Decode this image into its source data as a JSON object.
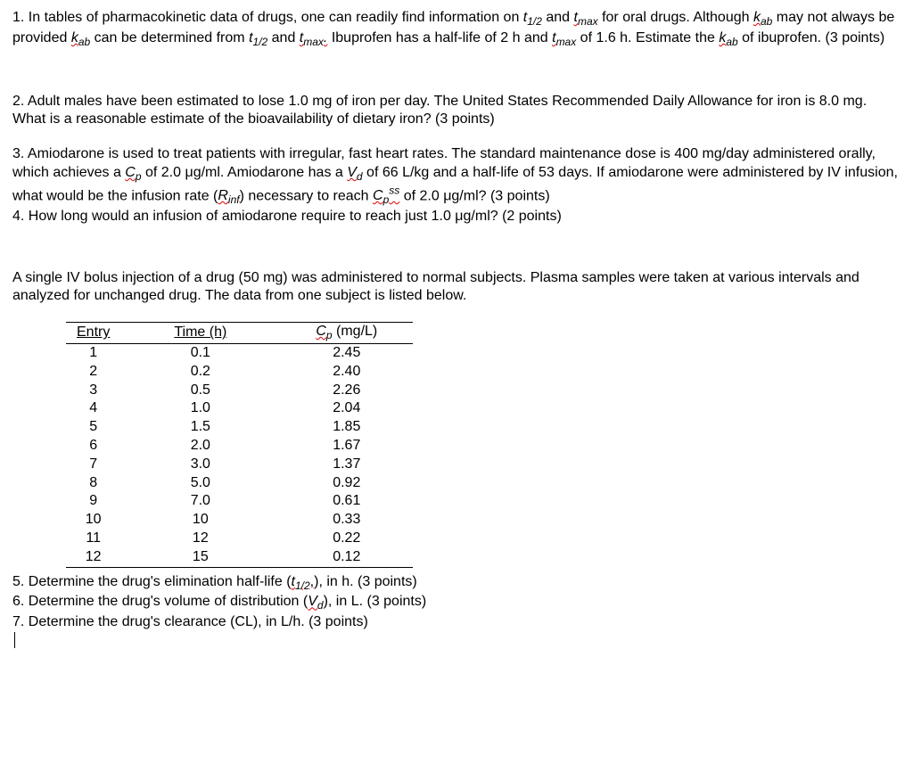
{
  "q1": {
    "text_parts": [
      "1. In tables of pharmacokinetic data of drugs, one can readily find information on ",
      " and ",
      " for oral drugs. Although ",
      " may not always be provided ",
      " can be determined from ",
      " and ",
      " Ibuprofen has a half-life of 2 h and ",
      " of 1.6 h. Estimate the ",
      " of ibuprofen. (3 points)"
    ],
    "sym": {
      "t12": "t",
      "t12_sub": "1/2",
      "tmax": "t",
      "tmax_sub": "max",
      "kab": "k",
      "kab_sub": "ab"
    }
  },
  "q2": "2. Adult males have been estimated to lose 1.0 mg of iron per day. The United States Recommended Daily Allowance for iron is 8.0 mg. What is a reasonable estimate of the bioavailability of dietary iron? (3 points)",
  "q3": {
    "parts": [
      "3. Amiodarone is used to treat patients with irregular, fast heart rates. The standard maintenance dose is 400 mg/day administered orally, which achieves a ",
      " of 2.0 μg/ml. Amiodarone has a ",
      " of 66 L/kg and a half-life of 53 days. If amiodarone were administered by IV infusion, what would be the infusion rate (",
      ") necessary to reach ",
      " of 2.0 μg/ml? (3 points)"
    ],
    "Cp": "C",
    "Cp_sub": "p",
    "Vd": "V",
    "Vd_sub": "d",
    "Rinf": "R",
    "Rinf_sub": "inf",
    "Cpss_sup": "ss"
  },
  "q4": "4. How long would an infusion of amiodarone require to reach just 1.0 μg/ml? (2 points)",
  "intro": "A single IV bolus injection of a drug (50 mg) was administered to normal subjects. Plasma samples were taken at various intervals and analyzed for unchanged drug. The data from one subject is listed below.",
  "table": {
    "headers": {
      "entry": "Entry",
      "time": "Time (h)",
      "cp_pre": "C",
      "cp_sub": "p",
      "cp_post": " (mg/L)"
    },
    "rows": [
      {
        "e": "1",
        "t": "0.1",
        "c": "2.45"
      },
      {
        "e": "2",
        "t": "0.2",
        "c": "2.40"
      },
      {
        "e": "3",
        "t": "0.5",
        "c": "2.26"
      },
      {
        "e": "4",
        "t": "1.0",
        "c": "2.04"
      },
      {
        "e": "5",
        "t": "1.5",
        "c": "1.85"
      },
      {
        "e": "6",
        "t": "2.0",
        "c": "1.67"
      },
      {
        "e": "7",
        "t": "3.0",
        "c": "1.37"
      },
      {
        "e": "8",
        "t": "5.0",
        "c": "0.92"
      },
      {
        "e": "9",
        "t": "7.0",
        "c": "0.61"
      },
      {
        "e": "10",
        "t": "10",
        "c": "0.33"
      },
      {
        "e": "11",
        "t": "12",
        "c": "0.22"
      },
      {
        "e": "12",
        "t": "15",
        "c": "0.12"
      }
    ]
  },
  "q5": {
    "pre": "5. Determine the drug's elimination half-life (",
    "sym": "t",
    "sub": "1/2",
    "post": "), in h. (3 points)"
  },
  "q6": {
    "pre": "6. Determine the drug's volume of distribution (",
    "sym": "V",
    "sub": "d",
    "post": "), in L. (3 points)"
  },
  "q7": "7. Determine the drug's clearance (CL), in L/h. (3 points)"
}
